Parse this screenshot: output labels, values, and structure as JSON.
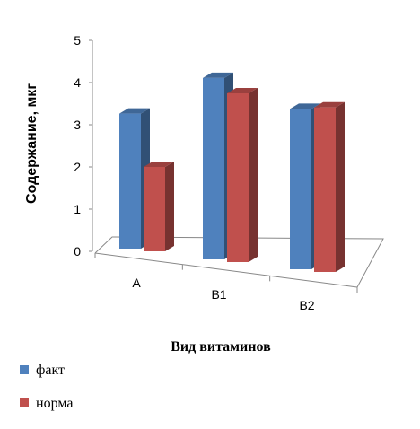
{
  "chart_data": {
    "type": "bar",
    "subtype": "3d-clustered-column",
    "categories": [
      "A",
      "B1",
      "B2"
    ],
    "series": [
      {
        "name": "факт",
        "values": [
          3.2,
          4.3,
          3.8
        ],
        "color": "#4f81bd"
      },
      {
        "name": "норма",
        "values": [
          2.0,
          4.0,
          3.9
        ],
        "color": "#c0504d"
      }
    ],
    "xlabel": "Вид витаминов",
    "ylabel": "Содержание, мкг",
    "ylim": [
      0,
      5
    ],
    "yticks": [
      "0",
      "1",
      "2",
      "3",
      "4",
      "5"
    ],
    "grid": false,
    "legend_position": "bottom-left"
  }
}
